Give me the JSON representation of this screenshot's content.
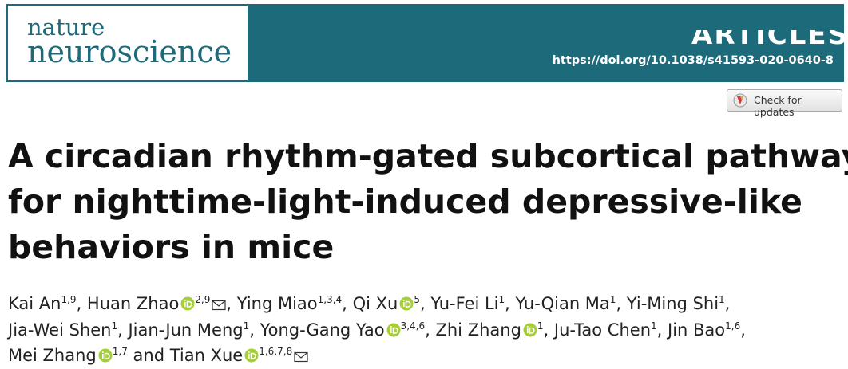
{
  "header": {
    "journal_line1": "nature",
    "journal_line2": "neuroscience",
    "section": "ARTICLES",
    "doi": "https://doi.org/10.1038/s41593-020-0640-8"
  },
  "check_updates": "Check for updates",
  "title_lines": [
    "A circadian rhythm-gated subcortical pathway",
    "for nighttime-light-induced depressive-like",
    "behaviors in mice"
  ],
  "authors": {
    "separator": ", ",
    "conjunction": " and ",
    "list": [
      {
        "name": "Kai An",
        "affiliations": "1,9"
      },
      {
        "name": "Huan Zhao",
        "affiliations": "2,9"
      },
      {
        "name": "Ying Miao",
        "affiliations": "1,3,4"
      },
      {
        "name": "Qi Xu",
        "affiliations": "5"
      },
      {
        "name": "Yu-Fei Li",
        "affiliations": "1"
      },
      {
        "name": "Yu-Qian Ma",
        "affiliations": "1"
      },
      {
        "name": "Yi-Ming Shi",
        "affiliations": "1"
      },
      {
        "name": "Jia-Wei Shen",
        "affiliations": "1"
      },
      {
        "name": "Jian-Jun Meng",
        "affiliations": "1"
      },
      {
        "name": "Yong-Gang Yao",
        "affiliations": "3,4,6"
      },
      {
        "name": "Zhi Zhang",
        "affiliations": "1"
      },
      {
        "name": "Ju-Tao Chen",
        "affiliations": "1"
      },
      {
        "name": "Jin Bao",
        "affiliations": "1,6"
      },
      {
        "name": "Mei Zhang",
        "affiliations": "1,7"
      },
      {
        "name": "Tian Xue",
        "affiliations": "1,6,7,8"
      }
    ]
  }
}
